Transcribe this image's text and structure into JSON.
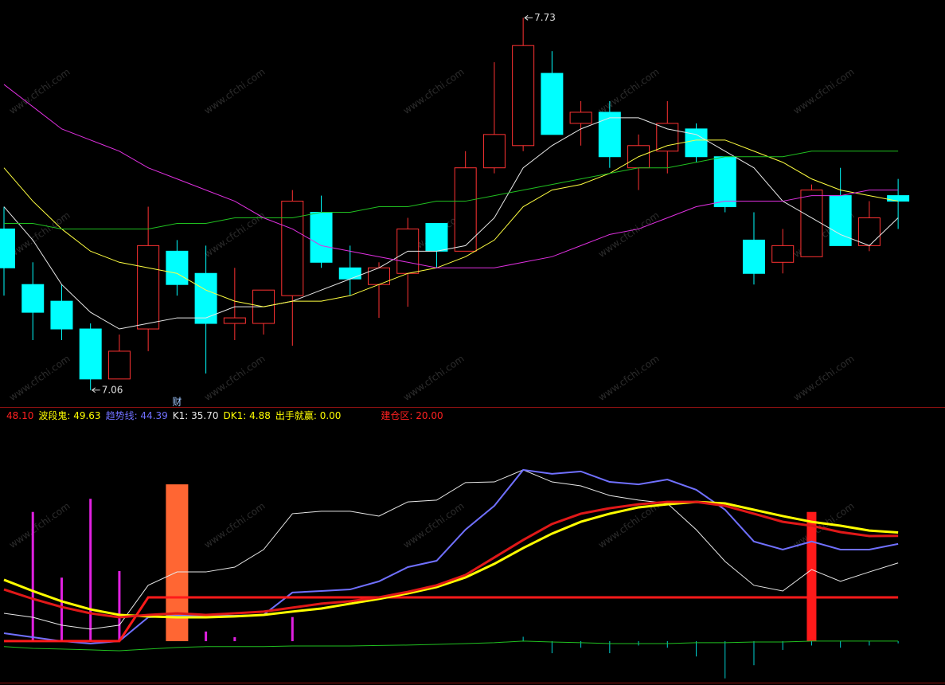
{
  "watermark": "www.cfchi.com",
  "chart_data": [
    {
      "type": "candlestick",
      "ylim": [
        7.031,
        7.762
      ],
      "up_color": "#ff3232",
      "down_color": "#00ffff",
      "open": [
        7.35,
        7.25,
        7.22,
        7.17,
        7.08,
        7.17,
        7.31,
        7.27,
        7.18,
        7.18,
        7.23,
        7.38,
        7.28,
        7.25,
        7.27,
        7.36,
        7.31,
        7.46,
        7.5,
        7.63,
        7.54,
        7.56,
        7.46,
        7.49,
        7.53,
        7.48,
        7.33,
        7.29,
        7.3,
        7.41,
        7.32,
        7.41
      ],
      "close": [
        7.28,
        7.2,
        7.17,
        7.08,
        7.13,
        7.32,
        7.25,
        7.18,
        7.19,
        7.24,
        7.4,
        7.29,
        7.26,
        7.28,
        7.35,
        7.31,
        7.46,
        7.52,
        7.68,
        7.52,
        7.56,
        7.48,
        7.5,
        7.54,
        7.48,
        7.39,
        7.27,
        7.32,
        7.42,
        7.32,
        7.37,
        7.4
      ],
      "high": [
        7.39,
        7.29,
        7.25,
        7.18,
        7.16,
        7.39,
        7.33,
        7.32,
        7.28,
        7.24,
        7.42,
        7.41,
        7.32,
        7.29,
        7.37,
        7.36,
        7.49,
        7.65,
        7.73,
        7.67,
        7.58,
        7.58,
        7.52,
        7.58,
        7.54,
        7.48,
        7.38,
        7.35,
        7.43,
        7.46,
        7.4,
        7.44
      ],
      "low": [
        7.23,
        7.15,
        7.15,
        7.06,
        7.08,
        7.13,
        7.23,
        7.09,
        7.15,
        7.16,
        7.14,
        7.28,
        7.23,
        7.19,
        7.21,
        7.28,
        7.31,
        7.45,
        7.49,
        7.52,
        7.5,
        7.46,
        7.42,
        7.45,
        7.47,
        7.38,
        7.25,
        7.27,
        7.3,
        7.32,
        7.31,
        7.35
      ],
      "events": [
        null,
        null,
        null,
        null,
        null,
        null,
        "财",
        null,
        null,
        null,
        null,
        null,
        null,
        null,
        null,
        null,
        null,
        null,
        null,
        null,
        null,
        null,
        null,
        null,
        null,
        null,
        null,
        null,
        null,
        null,
        null,
        null
      ],
      "series": [
        {
          "color": "#e8e8e8",
          "values": [
            7.39,
            7.33,
            7.25,
            7.2,
            7.17,
            7.18,
            7.19,
            7.19,
            7.21,
            7.21,
            7.22,
            7.24,
            7.26,
            7.28,
            7.31,
            7.31,
            7.32,
            7.37,
            7.46,
            7.5,
            7.53,
            7.55,
            7.55,
            7.53,
            7.52,
            7.49,
            7.46,
            7.4,
            7.37,
            7.34,
            7.32,
            7.37
          ]
        },
        {
          "color": "#ffff40",
          "values": [
            7.46,
            7.4,
            7.35,
            7.31,
            7.29,
            7.28,
            7.27,
            7.24,
            7.22,
            7.21,
            7.22,
            7.22,
            7.23,
            7.25,
            7.27,
            7.28,
            7.3,
            7.33,
            7.39,
            7.42,
            7.43,
            7.45,
            7.48,
            7.5,
            7.51,
            7.51,
            7.49,
            7.47,
            7.44,
            7.42,
            7.41,
            7.4
          ]
        },
        {
          "color": "#20c020",
          "values": [
            7.36,
            7.36,
            7.35,
            7.35,
            7.35,
            7.35,
            7.36,
            7.36,
            7.37,
            7.37,
            7.37,
            7.38,
            7.38,
            7.39,
            7.39,
            7.4,
            7.4,
            7.41,
            7.42,
            7.43,
            7.44,
            7.45,
            7.46,
            7.46,
            7.47,
            7.48,
            7.48,
            7.48,
            7.49,
            7.49,
            7.49,
            7.49
          ]
        },
        {
          "color": "#e030e0",
          "values": [
            7.61,
            7.57,
            7.53,
            7.51,
            7.49,
            7.46,
            7.44,
            7.42,
            7.4,
            7.37,
            7.35,
            7.32,
            7.31,
            7.3,
            7.29,
            7.28,
            7.28,
            7.28,
            7.29,
            7.3,
            7.32,
            7.34,
            7.35,
            7.37,
            7.39,
            7.4,
            7.4,
            7.4,
            7.41,
            7.41,
            7.42,
            7.42
          ]
        }
      ]
    },
    {
      "type": "line",
      "ylim": [
        -19.3,
        100
      ],
      "legend": [
        {
          "text": "48.10",
          "color": "#ff2020"
        },
        {
          "text": "波段鬼: 49.63",
          "color": "#ffff00"
        },
        {
          "text": "趋势线: 44.39",
          "color": "#7070ff"
        },
        {
          "text": "K1: 35.70",
          "color": "#e8e8e8"
        },
        {
          "text": "DK1: 4.88",
          "color": "#ffff00"
        },
        {
          "text": "出手就赢: 0.00",
          "color": "#ffff00"
        },
        {
          "text": "建仓区: 20.00",
          "color": "#ff2020"
        }
      ],
      "series": [
        {
          "style": "bar",
          "color": "#e020e0",
          "values": [
            null,
            59,
            29,
            65,
            32,
            null,
            null,
            4.4,
            1.8,
            null,
            11,
            null,
            null,
            null,
            null,
            null,
            null,
            null,
            null,
            null,
            null,
            null,
            null,
            null,
            null,
            null,
            null,
            null,
            null,
            null,
            null,
            null
          ]
        },
        {
          "style": "spike",
          "color": "#00d0d0",
          "values": [
            null,
            null,
            null,
            null,
            null,
            null,
            null,
            null,
            null,
            null,
            null,
            null,
            null,
            null,
            null,
            null,
            null,
            null,
            2,
            -5.5,
            -3,
            -5.5,
            -2,
            -3,
            -7,
            -17,
            -11,
            -4,
            -2,
            -3,
            -2,
            -1
          ]
        },
        {
          "style": "wide",
          "color": "#ff6633",
          "values": [
            null,
            null,
            null,
            null,
            null,
            null,
            71.6,
            null,
            null,
            null,
            null,
            null,
            null,
            null,
            null,
            null,
            null,
            null,
            null,
            null,
            null,
            null,
            null,
            null,
            null,
            null,
            null,
            null,
            null,
            null,
            null,
            null
          ]
        },
        {
          "style": "block",
          "color": "#ff1a1a",
          "values": [
            null,
            null,
            null,
            null,
            null,
            null,
            null,
            null,
            null,
            null,
            null,
            null,
            null,
            null,
            null,
            null,
            null,
            null,
            null,
            null,
            null,
            null,
            null,
            null,
            null,
            null,
            null,
            null,
            59,
            null,
            null,
            null
          ]
        },
        {
          "style": "line",
          "width": 1,
          "color": "#20c020",
          "values": [
            -2.5,
            -3.3,
            -3.6,
            -4.0,
            -4.4,
            -3.6,
            -2.9,
            -2.5,
            -2.5,
            -2.5,
            -2.2,
            -2.2,
            -2.2,
            -2.0,
            -1.8,
            -1.5,
            -1.1,
            -0.7,
            0,
            -0.4,
            -0.7,
            -1.1,
            -1.1,
            -1.1,
            -0.7,
            -0.7,
            -0.4,
            -0.4,
            0,
            0,
            0,
            0
          ]
        },
        {
          "style": "line",
          "width": 1,
          "color": "#e8e8e8",
          "values": [
            12.7,
            10.9,
            7.3,
            5.5,
            7.3,
            25.5,
            31.6,
            31.6,
            33.8,
            41.8,
            58.2,
            59.3,
            59.3,
            57.1,
            63.6,
            64.4,
            72.4,
            72.7,
            78.2,
            72.7,
            70.9,
            66.5,
            64.4,
            62.9,
            50.9,
            36.4,
            25.5,
            22.9,
            32.7,
            27.3,
            31.6,
            35.7
          ]
        },
        {
          "style": "line",
          "width": 2,
          "color": "#7070ff",
          "values": [
            3.6,
            1.8,
            0,
            -1.1,
            0,
            10.9,
            11.6,
            11.6,
            11.6,
            12.0,
            22.2,
            22.9,
            23.6,
            27.3,
            33.8,
            36.7,
            50.9,
            61.8,
            78.2,
            76.4,
            77.5,
            72.7,
            71.6,
            73.8,
            69.1,
            60.0,
            45.5,
            41.8,
            45.5,
            41.8,
            41.8,
            44.39
          ]
        },
        {
          "style": "line",
          "width": 3,
          "color": "#ff1a1a",
          "values": [
            0,
            0,
            0,
            0,
            0,
            20,
            20,
            20,
            20,
            20,
            20,
            20,
            20,
            20,
            20,
            20,
            20,
            20,
            20,
            20,
            20,
            20,
            20,
            20,
            20,
            20,
            20,
            20,
            20,
            20,
            20,
            20.0
          ]
        },
        {
          "style": "line",
          "width": 3,
          "color": "#ffff00",
          "values": [
            28.0,
            22.9,
            18.2,
            14.5,
            12.0,
            11.3,
            10.9,
            10.9,
            11.3,
            12.0,
            13.5,
            14.9,
            17.1,
            19.3,
            21.8,
            24.7,
            29.1,
            35.3,
            42.5,
            49.1,
            54.5,
            58.2,
            61.1,
            62.5,
            63.6,
            62.9,
            60.0,
            57.1,
            54.5,
            52.7,
            50.5,
            49.63
          ]
        },
        {
          "style": "line",
          "width": 3,
          "color": "#e01818",
          "values": [
            23.6,
            19.3,
            15.6,
            12.7,
            10.9,
            12.0,
            12.7,
            12.0,
            12.7,
            13.5,
            15.3,
            17.1,
            18.2,
            20.0,
            22.5,
            25.5,
            30.2,
            38.2,
            46.2,
            53.5,
            58.2,
            60.7,
            62.5,
            63.6,
            63.6,
            61.8,
            58.2,
            54.5,
            52.7,
            49.8,
            48.0,
            48.1
          ]
        }
      ]
    }
  ]
}
